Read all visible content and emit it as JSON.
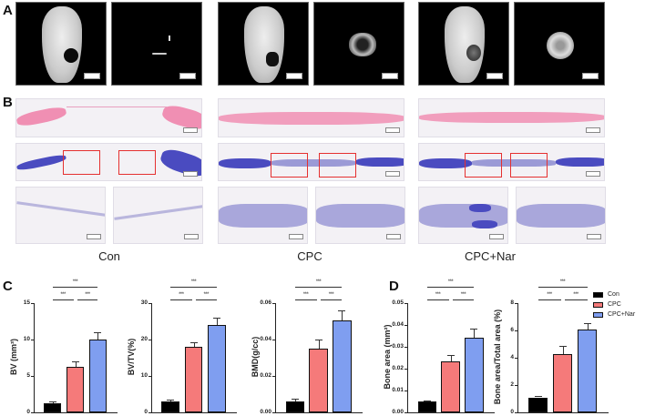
{
  "panels": {
    "A": "A",
    "B": "B",
    "C": "C",
    "D": "D"
  },
  "groups": [
    "Con",
    "CPC",
    "CPC+Nar"
  ],
  "colors": {
    "Con": "#000000",
    "CPC": "#f57a7a",
    "CPC+Nar": "#7f9ef0",
    "he_stain": "#f08fb3",
    "masson_stain": "#4a4bc0",
    "roi_box": "#e53030"
  },
  "legend": [
    {
      "label": "Con",
      "color": "#000000"
    },
    {
      "label": "CPC",
      "color": "#f57a7a"
    },
    {
      "label": "CPC+Nar",
      "color": "#7f9ef0"
    }
  ],
  "significance": "***",
  "chart_data": [
    {
      "type": "bar",
      "panel": "C",
      "categories": [
        "Con",
        "CPC",
        "CPC+Nar"
      ],
      "values": [
        1.3,
        6.3,
        10.0
      ],
      "errors": [
        0.15,
        0.7,
        1.0
      ],
      "ylabel": "BV (mm³)",
      "yticks": [
        "0",
        "5",
        "10",
        "15"
      ],
      "ylim": [
        0,
        15
      ],
      "significance": [
        [
          "Con",
          "CPC",
          "***"
        ],
        [
          "CPC",
          "CPC+Nar",
          "***"
        ],
        [
          "Con",
          "CPC+Nar",
          "***"
        ]
      ]
    },
    {
      "type": "bar",
      "panel": "C",
      "categories": [
        "Con",
        "CPC",
        "CPC+Nar"
      ],
      "values": [
        3.1,
        18.0,
        24.0
      ],
      "errors": [
        0.5,
        1.3,
        2.0
      ],
      "ylabel": "BV/TV(%)",
      "yticks": [
        "0",
        "10",
        "20",
        "30"
      ],
      "ylim": [
        0,
        30
      ],
      "significance": [
        [
          "Con",
          "CPC",
          "***"
        ],
        [
          "CPC",
          "CPC+Nar",
          "***"
        ],
        [
          "Con",
          "CPC+Nar",
          "***"
        ]
      ]
    },
    {
      "type": "bar",
      "panel": "C",
      "categories": [
        "Con",
        "CPC",
        "CPC+Nar"
      ],
      "values": [
        0.006,
        0.035,
        0.0505
      ],
      "errors": [
        0.0013,
        0.005,
        0.0055
      ],
      "ylabel": "BMD(g/cc)",
      "yticks": [
        "0.00",
        "0.02",
        "0.04",
        "0.06"
      ],
      "ylim": [
        0,
        0.06
      ],
      "significance": [
        [
          "Con",
          "CPC",
          "***"
        ],
        [
          "CPC",
          "CPC+Nar",
          "***"
        ],
        [
          "Con",
          "CPC+Nar",
          "***"
        ]
      ]
    },
    {
      "type": "bar",
      "panel": "D",
      "categories": [
        "Con",
        "CPC",
        "CPC+Nar"
      ],
      "values": [
        0.0048,
        0.0233,
        0.034
      ],
      "errors": [
        0.0007,
        0.003,
        0.0042
      ],
      "ylabel": "Bone area (mm²)",
      "yticks": [
        "0.00",
        "0.01",
        "0.02",
        "0.03",
        "0.04",
        "0.05"
      ],
      "ylim": [
        0,
        0.05
      ],
      "significance": [
        [
          "Con",
          "CPC",
          "***"
        ],
        [
          "CPC",
          "CPC+Nar",
          "***"
        ],
        [
          "Con",
          "CPC+Nar",
          "***"
        ]
      ]
    },
    {
      "type": "bar",
      "panel": "D",
      "categories": [
        "Con",
        "CPC",
        "CPC+Nar"
      ],
      "values": [
        1.1,
        4.3,
        6.1
      ],
      "errors": [
        0.12,
        0.55,
        0.45
      ],
      "ylabel": "Bone area/Total area (%)",
      "yticks": [
        "0",
        "2",
        "4",
        "6",
        "8"
      ],
      "ylim": [
        0,
        8
      ],
      "significance": [
        [
          "Con",
          "CPC",
          "***"
        ],
        [
          "CPC",
          "CPC+Nar",
          "***"
        ],
        [
          "Con",
          "CPC+Nar",
          "***"
        ]
      ]
    }
  ]
}
